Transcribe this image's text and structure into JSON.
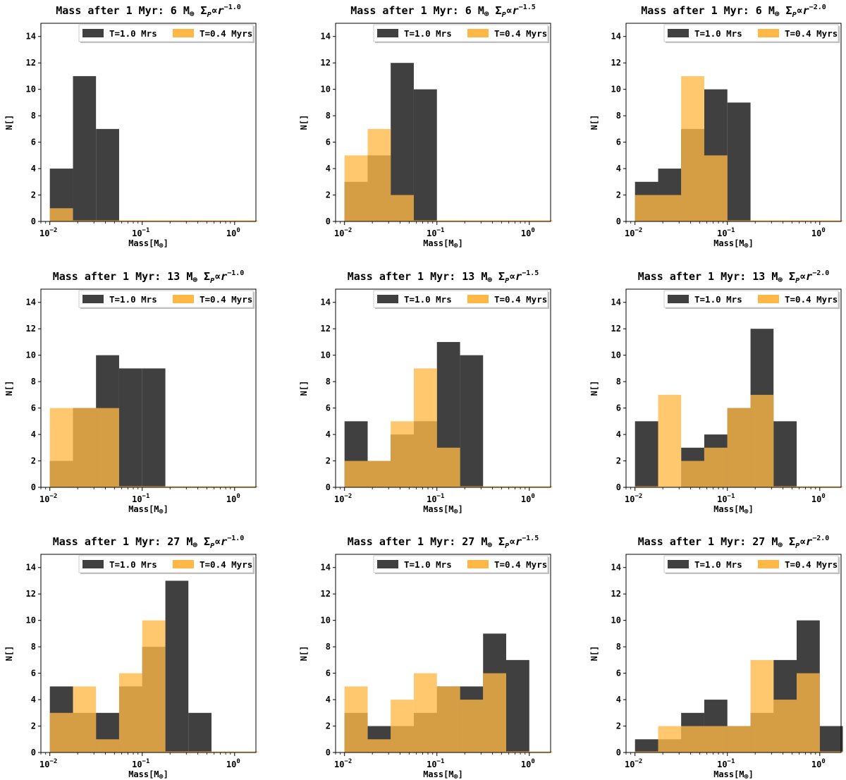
{
  "figure": {
    "bin_edges": [
      0.01,
      0.0178,
      0.0316,
      0.0562,
      0.1,
      0.178,
      0.316,
      0.562,
      1.0,
      1.778
    ],
    "xlim": [
      0.008,
      1.7
    ],
    "ylim": [
      0,
      15
    ],
    "yticks": [
      0,
      2,
      4,
      6,
      8,
      10,
      12,
      14
    ],
    "xticks": [
      {
        "value": 0.01,
        "base": "10",
        "exp": "−2"
      },
      {
        "value": 0.1,
        "base": "10",
        "exp": "−1"
      },
      {
        "value": 1.0,
        "base": "10",
        "exp": "0"
      }
    ],
    "xlabel_main": "Mass[M",
    "xlabel_sub": "⊕",
    "xlabel_end": "]",
    "ylabel": "N[]",
    "colors": {
      "dark": "#404040",
      "orange": "#FFB845",
      "overlap": "#CF8C12"
    },
    "legend": [
      {
        "label": "T=1.0 Mrs",
        "color": "#404040"
      },
      {
        "label": "T=0.4 Myrs",
        "color": "#FFB845"
      }
    ]
  },
  "chart_data": [
    {
      "type": "bar",
      "title_prefix": "Mass after 1 Myr: 6 M",
      "title_sym": "⊕",
      "title_mid": " Σ",
      "title_sub": "P",
      "title_prop": "∝",
      "title_r": "r",
      "title_exp": "−1.0",
      "series": [
        {
          "name": "T=1.0 Mrs",
          "values": [
            4,
            11,
            7,
            0,
            0,
            0,
            0,
            0,
            0
          ]
        },
        {
          "name": "T=0.4 Myrs",
          "values": [
            1,
            0,
            0,
            0,
            0,
            0,
            0,
            0,
            0
          ]
        }
      ]
    },
    {
      "type": "bar",
      "title_prefix": "Mass after 1 Myr: 6 M",
      "title_sym": "⊕",
      "title_mid": " Σ",
      "title_sub": "P",
      "title_prop": "∝",
      "title_r": "r",
      "title_exp": "−1.5",
      "series": [
        {
          "name": "T=1.0 Mrs",
          "values": [
            3,
            5,
            12,
            10,
            0,
            0,
            0,
            0,
            0
          ]
        },
        {
          "name": "T=0.4 Myrs",
          "values": [
            5,
            7,
            2,
            0,
            0,
            0,
            0,
            0,
            0
          ]
        }
      ]
    },
    {
      "type": "bar",
      "title_prefix": "Mass after 1 Myr: 6 M",
      "title_sym": "⊕",
      "title_mid": " Σ",
      "title_sub": "P",
      "title_prop": "∝",
      "title_r": "r",
      "title_exp": "−2.0",
      "series": [
        {
          "name": "T=1.0 Mrs",
          "values": [
            3,
            4,
            7,
            10,
            9,
            0,
            0,
            0,
            0
          ]
        },
        {
          "name": "T=0.4 Myrs",
          "values": [
            2,
            2,
            11,
            5,
            0,
            0,
            0,
            0,
            0
          ]
        }
      ]
    },
    {
      "type": "bar",
      "title_prefix": "Mass after 1 Myr: 13 M",
      "title_sym": "⊕",
      "title_mid": " Σ",
      "title_sub": "P",
      "title_prop": "∝",
      "title_r": "r",
      "title_exp": "−1.0",
      "series": [
        {
          "name": "T=1.0 Mrs",
          "values": [
            2,
            6,
            10,
            9,
            9,
            0,
            0,
            0,
            0
          ]
        },
        {
          "name": "T=0.4 Myrs",
          "values": [
            6,
            6,
            6,
            0,
            0,
            0,
            0,
            0,
            0
          ]
        }
      ]
    },
    {
      "type": "bar",
      "title_prefix": "Mass after 1 Myr: 13 M",
      "title_sym": "⊕",
      "title_mid": " Σ",
      "title_sub": "P",
      "title_prop": "∝",
      "title_r": "r",
      "title_exp": "−1.5",
      "series": [
        {
          "name": "T=1.0 Mrs",
          "values": [
            5,
            2,
            4,
            5,
            11,
            10,
            0,
            0,
            0
          ]
        },
        {
          "name": "T=0.4 Myrs",
          "values": [
            2,
            2,
            5,
            9,
            3,
            0,
            0,
            0,
            0
          ]
        }
      ]
    },
    {
      "type": "bar",
      "title_prefix": "Mass after 1 Myr: 13 M",
      "title_sym": "⊕",
      "title_mid": " Σ",
      "title_sub": "P",
      "title_prop": "∝",
      "title_r": "r",
      "title_exp": "−2.0",
      "series": [
        {
          "name": "T=1.0 Mrs",
          "values": [
            5,
            0,
            3,
            4,
            6,
            12,
            5,
            0,
            0
          ]
        },
        {
          "name": "T=0.4 Myrs",
          "values": [
            0,
            7,
            2,
            3,
            6,
            7,
            0,
            0,
            0
          ]
        }
      ]
    },
    {
      "type": "bar",
      "title_prefix": "Mass after 1 Myr: 27 M",
      "title_sym": "⊕",
      "title_mid": " Σ",
      "title_sub": "P",
      "title_prop": "∝",
      "title_r": "r",
      "title_exp": "−1.0",
      "series": [
        {
          "name": "T=1.0 Mrs",
          "values": [
            5,
            3,
            3,
            5,
            8,
            13,
            3,
            0,
            0
          ]
        },
        {
          "name": "T=0.4 Myrs",
          "values": [
            3,
            5,
            1,
            6,
            10,
            0,
            0,
            0,
            0
          ]
        }
      ]
    },
    {
      "type": "bar",
      "title_prefix": "Mass after 1 Myr: 27 M",
      "title_sym": "⊕",
      "title_mid": " Σ",
      "title_sub": "P",
      "title_prop": "∝",
      "title_r": "r",
      "title_exp": "−1.5",
      "series": [
        {
          "name": "T=1.0 Mrs",
          "values": [
            3,
            2,
            2,
            3,
            5,
            5,
            9,
            7,
            0
          ]
        },
        {
          "name": "T=0.4 Myrs",
          "values": [
            5,
            1,
            4,
            6,
            5,
            4,
            6,
            0,
            0
          ]
        }
      ]
    },
    {
      "type": "bar",
      "title_prefix": "Mass after 1 Myr: 27 M",
      "title_sym": "⊕",
      "title_mid": " Σ",
      "title_sub": "P",
      "title_prop": "∝",
      "title_r": "r",
      "title_exp": "−2.0",
      "series": [
        {
          "name": "T=1.0 Mrs",
          "values": [
            1,
            1,
            3,
            4,
            2,
            3,
            7,
            10,
            2
          ]
        },
        {
          "name": "T=0.4 Myrs",
          "values": [
            0,
            2,
            2,
            2,
            2,
            7,
            4,
            6,
            0
          ]
        }
      ]
    }
  ]
}
